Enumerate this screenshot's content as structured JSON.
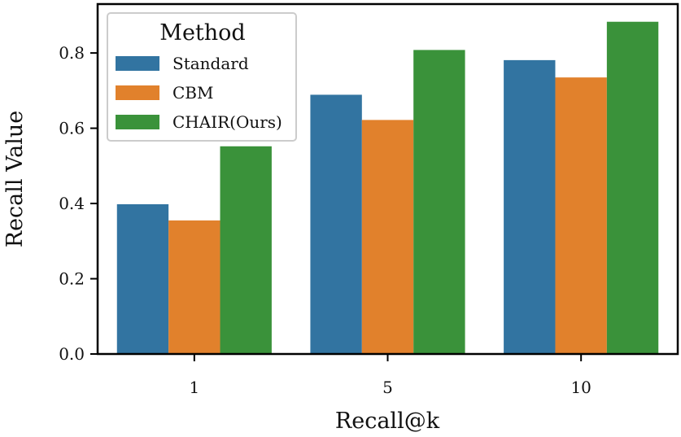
{
  "chart_data": {
    "type": "bar",
    "title": "",
    "xlabel": "Recall@k",
    "ylabel": "Recall Value",
    "categories": [
      "1",
      "5",
      "10"
    ],
    "series": [
      {
        "name": "Standard",
        "values": [
          0.398,
          0.689,
          0.781
        ],
        "color": "#3274a1"
      },
      {
        "name": "CBM",
        "values": [
          0.355,
          0.622,
          0.735
        ],
        "color": "#e1812c"
      },
      {
        "name": "CHAIR(Ours)",
        "values": [
          0.552,
          0.808,
          0.883
        ],
        "color": "#3a923a"
      }
    ],
    "ylim": [
      0,
      0.93
    ],
    "yticks": [
      0.0,
      0.2,
      0.4,
      0.6,
      0.8
    ],
    "ytick_labels": [
      "0.0",
      "0.2",
      "0.4",
      "0.6",
      "0.8"
    ],
    "grid": false,
    "legend": {
      "title": "Method",
      "placement": "top-left"
    }
  }
}
